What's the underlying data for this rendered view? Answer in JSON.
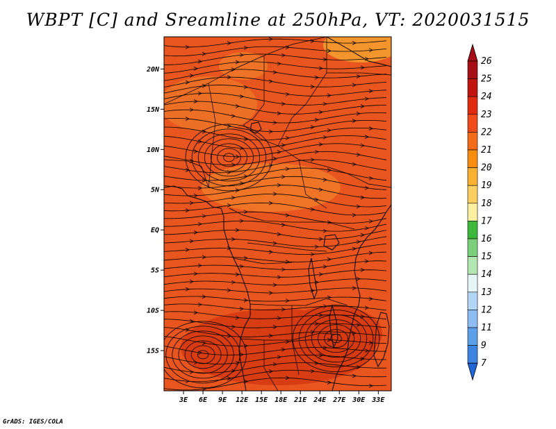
{
  "title": "WBPT [C] and Sreamline at 250hPa, VT: 2020031515",
  "footer": "GrADS: IGES/COLA",
  "map": {
    "lon_range": [
      0,
      35
    ],
    "lat_range": [
      -20,
      24
    ],
    "lat_ticks": [
      {
        "value": 20,
        "label": "20N"
      },
      {
        "value": 15,
        "label": "15N"
      },
      {
        "value": 10,
        "label": "10N"
      },
      {
        "value": 5,
        "label": "5N"
      },
      {
        "value": 0,
        "label": "EQ"
      },
      {
        "value": -5,
        "label": "5S"
      },
      {
        "value": -10,
        "label": "10S"
      },
      {
        "value": -15,
        "label": "15S"
      }
    ],
    "lon_ticks": [
      {
        "value": 3,
        "label": "3E"
      },
      {
        "value": 6,
        "label": "6E"
      },
      {
        "value": 9,
        "label": "9E"
      },
      {
        "value": 12,
        "label": "12E"
      },
      {
        "value": 15,
        "label": "15E"
      },
      {
        "value": 18,
        "label": "18E"
      },
      {
        "value": 21,
        "label": "21E"
      },
      {
        "value": 24,
        "label": "24E"
      },
      {
        "value": 27,
        "label": "27E"
      },
      {
        "value": 30,
        "label": "30E"
      },
      {
        "value": 33,
        "label": "33E"
      }
    ],
    "field_colors": {
      "background": "#e8551f",
      "warmer": "#d63a12",
      "cooler": "#f07a28",
      "coolest": "#f5a030"
    },
    "vortex_centers": [
      {
        "lon": 10,
        "lat": 9,
        "label": ""
      },
      {
        "lon": 6,
        "lat": -15.5,
        "label": ""
      },
      {
        "lon": 26.5,
        "lat": -13.5,
        "label": ""
      }
    ]
  },
  "colorbar": {
    "levels": [
      {
        "label": "26",
        "color": "#a50f15"
      },
      {
        "label": "25",
        "color": "#c0150f"
      },
      {
        "label": "24",
        "color": "#e02a10"
      },
      {
        "label": "23",
        "color": "#ef4a1a"
      },
      {
        "label": "22",
        "color": "#f36a18"
      },
      {
        "label": "21",
        "color": "#f78c10"
      },
      {
        "label": "20",
        "color": "#fab030"
      },
      {
        "label": "19",
        "color": "#fcd060"
      },
      {
        "label": "18",
        "color": "#fdf0a0"
      },
      {
        "label": "17",
        "color": "#3cb83c"
      },
      {
        "label": "16",
        "color": "#7cd07c"
      },
      {
        "label": "15",
        "color": "#b4e6b4"
      },
      {
        "label": "14",
        "color": "#e6f5f8"
      },
      {
        "label": "13",
        "color": "#b4d6f6"
      },
      {
        "label": "12",
        "color": "#8cbcf0"
      },
      {
        "label": "11",
        "color": "#5ca0ea"
      },
      {
        "label": "9",
        "color": "#3c84e2"
      },
      {
        "label": "7",
        "color": "#1f66d6"
      }
    ]
  }
}
